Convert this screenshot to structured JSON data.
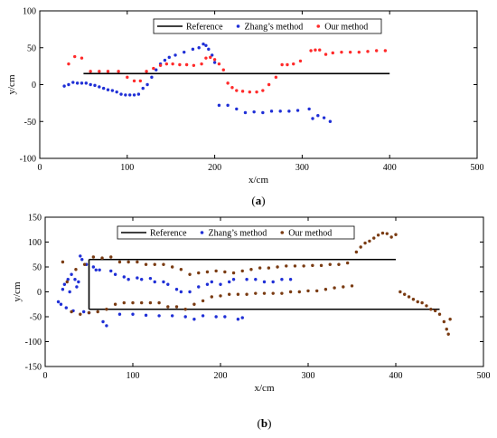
{
  "colors": {
    "reference": "#000000",
    "zhang_a": "#1f2fd6",
    "our_a": "#ff2a2a",
    "zhang_b": "#1f2fd6",
    "our_b": "#7a3b12"
  },
  "chart_data": [
    {
      "type": "scatter",
      "panel_label": "a",
      "xlabel": "x/cm",
      "ylabel": "y/cm",
      "xlim": [
        0,
        500
      ],
      "ylim": [
        -100,
        100
      ],
      "xticks": [
        0,
        100,
        200,
        300,
        400,
        500
      ],
      "yticks": [
        -100,
        -50,
        0,
        50,
        100
      ],
      "legend_position": "top-right",
      "series": [
        {
          "name": "Reference",
          "kind": "line",
          "segments": [
            [
              [
                50,
                15
              ],
              [
                400,
                15
              ]
            ]
          ]
        },
        {
          "name": "Zhang’s method",
          "kind": "points",
          "points": [
            [
              28,
              -2
            ],
            [
              33,
              0
            ],
            [
              38,
              3
            ],
            [
              43,
              2
            ],
            [
              48,
              2
            ],
            [
              53,
              2
            ],
            [
              58,
              0
            ],
            [
              63,
              -1
            ],
            [
              68,
              -3
            ],
            [
              73,
              -5
            ],
            [
              78,
              -7
            ],
            [
              83,
              -8
            ],
            [
              88,
              -10
            ],
            [
              93,
              -13
            ],
            [
              98,
              -14
            ],
            [
              103,
              -14
            ],
            [
              108,
              -14
            ],
            [
              113,
              -13
            ],
            [
              118,
              -5
            ],
            [
              123,
              0
            ],
            [
              128,
              10
            ],
            [
              133,
              20
            ],
            [
              138,
              28
            ],
            [
              143,
              33
            ],
            [
              148,
              37
            ],
            [
              155,
              40
            ],
            [
              165,
              44
            ],
            [
              175,
              48
            ],
            [
              182,
              50
            ],
            [
              187,
              55
            ],
            [
              190,
              53
            ],
            [
              193,
              48
            ],
            [
              197,
              40
            ],
            [
              200,
              30
            ],
            [
              205,
              -28
            ],
            [
              215,
              -28
            ],
            [
              225,
              -33
            ],
            [
              235,
              -38
            ],
            [
              245,
              -37
            ],
            [
              255,
              -38
            ],
            [
              265,
              -36
            ],
            [
              275,
              -36
            ],
            [
              285,
              -36
            ],
            [
              295,
              -35
            ],
            [
              308,
              -33
            ],
            [
              312,
              -46
            ],
            [
              318,
              -42
            ],
            [
              325,
              -45
            ],
            [
              332,
              -50
            ]
          ]
        },
        {
          "name": "Our method",
          "kind": "points",
          "points": [
            [
              33,
              28
            ],
            [
              40,
              38
            ],
            [
              48,
              36
            ],
            [
              58,
              18
            ],
            [
              68,
              18
            ],
            [
              78,
              18
            ],
            [
              90,
              18
            ],
            [
              100,
              10
            ],
            [
              108,
              5
            ],
            [
              115,
              5
            ],
            [
              122,
              18
            ],
            [
              130,
              22
            ],
            [
              138,
              26
            ],
            [
              145,
              28
            ],
            [
              152,
              28
            ],
            [
              160,
              27
            ],
            [
              168,
              27
            ],
            [
              176,
              26
            ],
            [
              185,
              28
            ],
            [
              190,
              36
            ],
            [
              195,
              37
            ],
            [
              200,
              34
            ],
            [
              205,
              28
            ],
            [
              210,
              20
            ],
            [
              215,
              2
            ],
            [
              220,
              -4
            ],
            [
              225,
              -8
            ],
            [
              232,
              -9
            ],
            [
              240,
              -10
            ],
            [
              248,
              -10
            ],
            [
              255,
              -8
            ],
            [
              262,
              0
            ],
            [
              270,
              10
            ],
            [
              277,
              27
            ],
            [
              283,
              27
            ],
            [
              290,
              28
            ],
            [
              298,
              32
            ],
            [
              310,
              46
            ],
            [
              315,
              47
            ],
            [
              320,
              47
            ],
            [
              327,
              41
            ],
            [
              335,
              43
            ],
            [
              345,
              44
            ],
            [
              355,
              44
            ],
            [
              365,
              44
            ],
            [
              375,
              45
            ],
            [
              385,
              46
            ],
            [
              395,
              46
            ]
          ]
        }
      ]
    },
    {
      "type": "scatter",
      "panel_label": "b",
      "xlabel": "x/cm",
      "ylabel": "y/cm",
      "xlim": [
        0,
        500
      ],
      "ylim": [
        -150,
        150
      ],
      "xticks": [
        0,
        100,
        200,
        300,
        400,
        500
      ],
      "yticks": [
        -150,
        -100,
        -50,
        0,
        50,
        100,
        150
      ],
      "legend_position": "top-right",
      "series": [
        {
          "name": "Reference",
          "kind": "line",
          "segments": [
            [
              [
                50,
                65
              ],
              [
                400,
                65
              ]
            ],
            [
              [
                50,
                -35
              ],
              [
                450,
                -35
              ]
            ],
            [
              [
                50,
                -35
              ],
              [
                50,
                65
              ]
            ]
          ]
        },
        {
          "name": "Zhang’s method",
          "kind": "points",
          "points": [
            [
              15,
              -20
            ],
            [
              18,
              -25
            ],
            [
              20,
              5
            ],
            [
              22,
              15
            ],
            [
              24,
              -32
            ],
            [
              26,
              25
            ],
            [
              28,
              0
            ],
            [
              30,
              35
            ],
            [
              32,
              -38
            ],
            [
              34,
              25
            ],
            [
              36,
              10
            ],
            [
              38,
              20
            ],
            [
              40,
              72
            ],
            [
              42,
              65
            ],
            [
              44,
              -40
            ],
            [
              47,
              55
            ],
            [
              50,
              -42
            ],
            [
              55,
              50
            ],
            [
              58,
              44
            ],
            [
              62,
              44
            ],
            [
              66,
              -60
            ],
            [
              70,
              -68
            ],
            [
              75,
              42
            ],
            [
              80,
              35
            ],
            [
              85,
              -45
            ],
            [
              90,
              30
            ],
            [
              95,
              25
            ],
            [
              100,
              -45
            ],
            [
              105,
              28
            ],
            [
              110,
              25
            ],
            [
              115,
              -47
            ],
            [
              120,
              27
            ],
            [
              125,
              20
            ],
            [
              130,
              -48
            ],
            [
              135,
              20
            ],
            [
              140,
              15
            ],
            [
              145,
              -48
            ],
            [
              150,
              5
            ],
            [
              155,
              0
            ],
            [
              160,
              -50
            ],
            [
              165,
              0
            ],
            [
              170,
              -55
            ],
            [
              175,
              10
            ],
            [
              180,
              -48
            ],
            [
              185,
              15
            ],
            [
              190,
              20
            ],
            [
              195,
              -50
            ],
            [
              200,
              15
            ],
            [
              205,
              -50
            ],
            [
              210,
              20
            ],
            [
              215,
              25
            ],
            [
              220,
              -55
            ],
            [
              225,
              -52
            ],
            [
              230,
              25
            ],
            [
              240,
              25
            ],
            [
              250,
              20
            ],
            [
              260,
              20
            ],
            [
              270,
              25
            ],
            [
              280,
              25
            ]
          ]
        },
        {
          "name": "Our method",
          "kind": "points",
          "points": [
            [
              20,
              60
            ],
            [
              25,
              20
            ],
            [
              30,
              -40
            ],
            [
              35,
              45
            ],
            [
              40,
              -45
            ],
            [
              45,
              55
            ],
            [
              50,
              -42
            ],
            [
              55,
              70
            ],
            [
              60,
              -40
            ],
            [
              65,
              68
            ],
            [
              70,
              -35
            ],
            [
              75,
              70
            ],
            [
              80,
              -25
            ],
            [
              85,
              60
            ],
            [
              90,
              -22
            ],
            [
              95,
              60
            ],
            [
              100,
              -22
            ],
            [
              105,
              60
            ],
            [
              110,
              -22
            ],
            [
              115,
              55
            ],
            [
              120,
              -22
            ],
            [
              125,
              55
            ],
            [
              130,
              -22
            ],
            [
              135,
              55
            ],
            [
              140,
              -30
            ],
            [
              145,
              50
            ],
            [
              150,
              -30
            ],
            [
              155,
              45
            ],
            [
              160,
              -35
            ],
            [
              165,
              35
            ],
            [
              170,
              -25
            ],
            [
              175,
              38
            ],
            [
              180,
              -18
            ],
            [
              185,
              40
            ],
            [
              190,
              -10
            ],
            [
              195,
              42
            ],
            [
              200,
              -8
            ],
            [
              205,
              40
            ],
            [
              210,
              -5
            ],
            [
              215,
              38
            ],
            [
              220,
              -5
            ],
            [
              225,
              42
            ],
            [
              230,
              -5
            ],
            [
              235,
              45
            ],
            [
              240,
              -3
            ],
            [
              245,
              48
            ],
            [
              250,
              -3
            ],
            [
              255,
              48
            ],
            [
              260,
              -3
            ],
            [
              265,
              50
            ],
            [
              270,
              -3
            ],
            [
              275,
              52
            ],
            [
              280,
              0
            ],
            [
              285,
              52
            ],
            [
              290,
              0
            ],
            [
              295,
              52
            ],
            [
              300,
              2
            ],
            [
              305,
              53
            ],
            [
              310,
              2
            ],
            [
              315,
              53
            ],
            [
              320,
              5
            ],
            [
              325,
              55
            ],
            [
              330,
              8
            ],
            [
              335,
              55
            ],
            [
              340,
              10
            ],
            [
              345,
              58
            ],
            [
              350,
              12
            ],
            [
              355,
              80
            ],
            [
              360,
              90
            ],
            [
              365,
              98
            ],
            [
              370,
              102
            ],
            [
              375,
              108
            ],
            [
              380,
              114
            ],
            [
              385,
              118
            ],
            [
              390,
              117
            ],
            [
              395,
              110
            ],
            [
              400,
              115
            ],
            [
              405,
              0
            ],
            [
              410,
              -5
            ],
            [
              415,
              -10
            ],
            [
              420,
              -15
            ],
            [
              425,
              -20
            ],
            [
              430,
              -22
            ],
            [
              435,
              -28
            ],
            [
              440,
              -35
            ],
            [
              445,
              -38
            ],
            [
              450,
              -45
            ],
            [
              455,
              -60
            ],
            [
              458,
              -75
            ],
            [
              460,
              -85
            ],
            [
              462,
              -55
            ]
          ]
        }
      ]
    }
  ]
}
